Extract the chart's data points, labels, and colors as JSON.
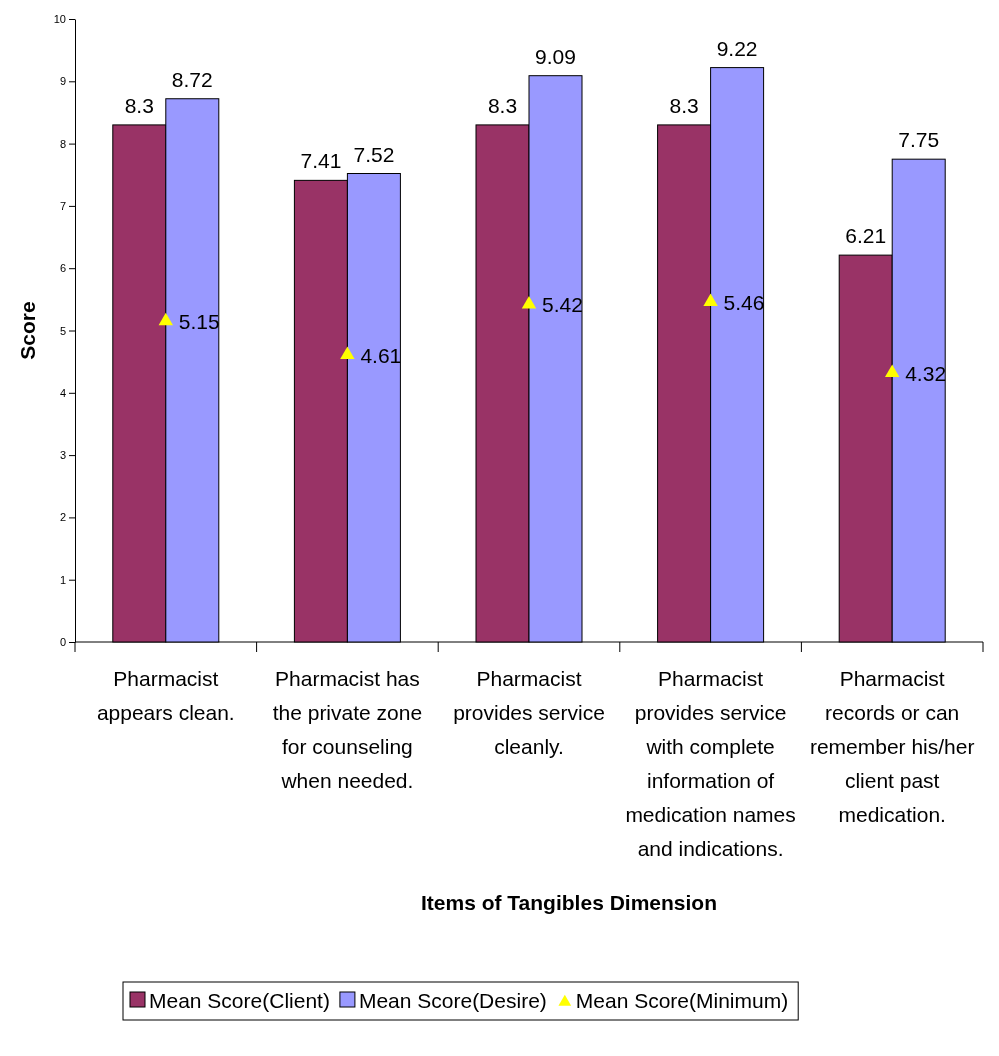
{
  "chart_data": {
    "type": "bar",
    "xlabel": "Items of Tangibles Dimension",
    "ylabel": "Score",
    "categories": [
      "Pharmacist appears clean.",
      "Pharmacist has the private zone for counseling when needed.",
      "Pharmacist provides service cleanly.",
      "Pharmacist provides service with complete information of medication names and indications.",
      "Pharmacist records or can remember his/her client past medication."
    ],
    "series": [
      {
        "name": "Mean Score(Client)",
        "color": "#993366",
        "values": [
          8.3,
          7.41,
          8.3,
          8.3,
          6.21
        ]
      },
      {
        "name": "Mean Score(Desire)",
        "color": "#9999ff",
        "values": [
          8.72,
          7.52,
          9.09,
          9.22,
          7.75
        ]
      },
      {
        "name": "Mean Score(Minimum)",
        "type": "scatter",
        "color": "#ffff00",
        "marker": "triangle",
        "values": [
          5.15,
          4.61,
          5.42,
          5.46,
          4.32
        ]
      }
    ],
    "ylim": [
      0,
      10
    ],
    "yticks": [
      0,
      1,
      2,
      3,
      4,
      5,
      6,
      7,
      8,
      9,
      10
    ],
    "data_labels": true,
    "grid": false,
    "legend": "bottom"
  }
}
